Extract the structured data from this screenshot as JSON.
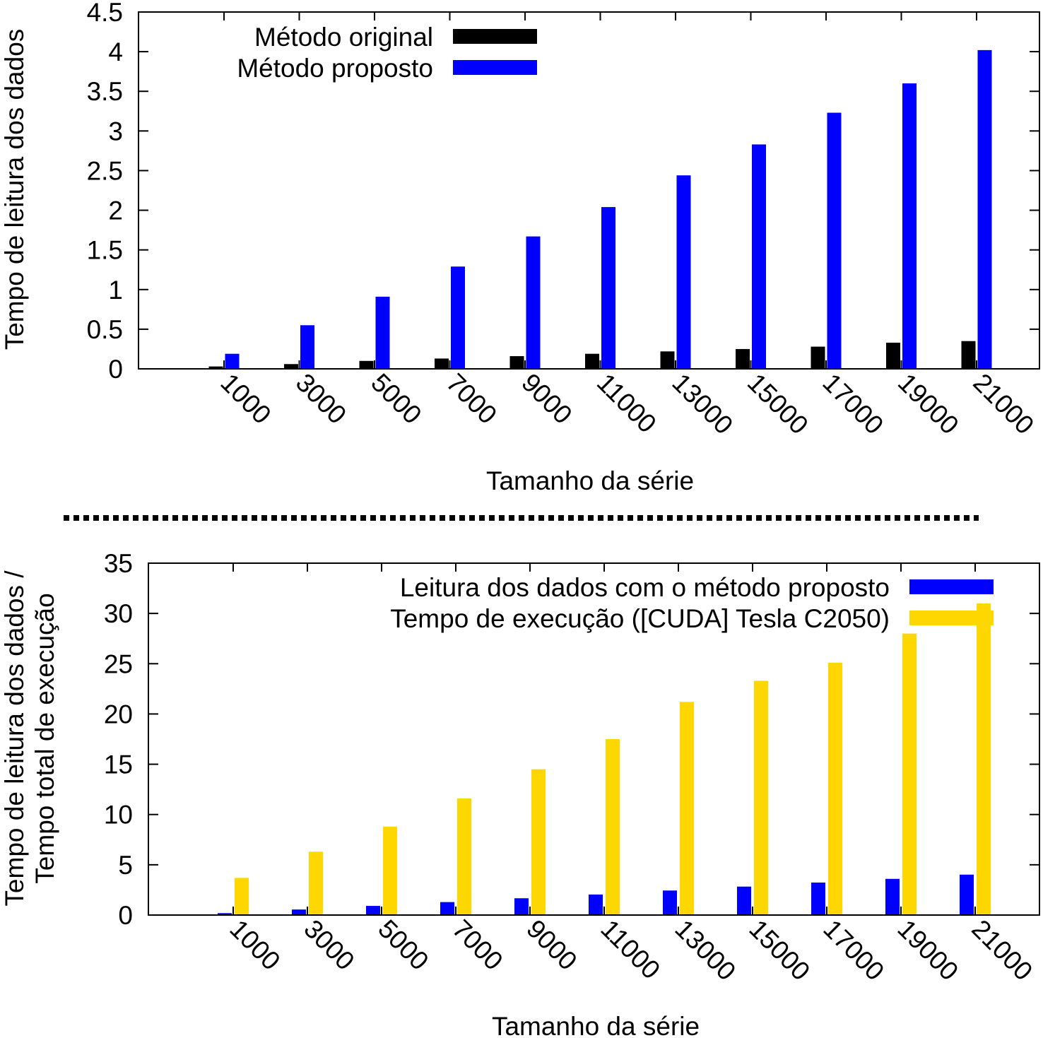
{
  "chart_data": [
    {
      "type": "bar",
      "categories": [
        "1000",
        "3000",
        "5000",
        "7000",
        "9000",
        "11000",
        "13000",
        "15000",
        "17000",
        "19000",
        "21000"
      ],
      "series": [
        {
          "name": "Método original",
          "color": "#000000",
          "values": [
            0.03,
            0.06,
            0.1,
            0.13,
            0.16,
            0.19,
            0.22,
            0.25,
            0.28,
            0.33,
            0.35
          ]
        },
        {
          "name": "Método proposto",
          "color": "#0000ff",
          "values": [
            0.19,
            0.55,
            0.91,
            1.29,
            1.67,
            2.04,
            2.44,
            2.83,
            3.23,
            3.6,
            4.02
          ]
        }
      ],
      "title": "",
      "xlabel": "Tamanho da série",
      "ylabel": "Tempo de leitura dos dados",
      "ylim": [
        0,
        4.5
      ],
      "yticks": [
        "0",
        "0.5",
        "1",
        "1.5",
        "2",
        "2.5",
        "3",
        "3.5",
        "4",
        "4.5"
      ],
      "legend": "top-left"
    },
    {
      "type": "bar",
      "categories": [
        "1000",
        "3000",
        "5000",
        "7000",
        "9000",
        "11000",
        "13000",
        "15000",
        "17000",
        "19000",
        "21000"
      ],
      "series": [
        {
          "name": "Leitura dos dados com o método proposto",
          "color": "#0000ff",
          "values": [
            0.19,
            0.55,
            0.91,
            1.29,
            1.67,
            2.04,
            2.44,
            2.83,
            3.23,
            3.6,
            4.02
          ]
        },
        {
          "name": "Tempo de execução ([CUDA] Tesla C2050)",
          "color": "#ffd700",
          "values": [
            3.7,
            6.3,
            8.8,
            11.6,
            14.5,
            17.5,
            21.2,
            23.3,
            25.1,
            28.0,
            31.0
          ]
        }
      ],
      "title": "",
      "xlabel": "Tamanho da série",
      "ylabel": [
        "Tempo de leitura dos dados /",
        "Tempo total de execução"
      ],
      "ylim": [
        0,
        35
      ],
      "yticks": [
        "0",
        "5",
        "10",
        "15",
        "20",
        "25",
        "30",
        "35"
      ],
      "legend": "top-right"
    }
  ]
}
